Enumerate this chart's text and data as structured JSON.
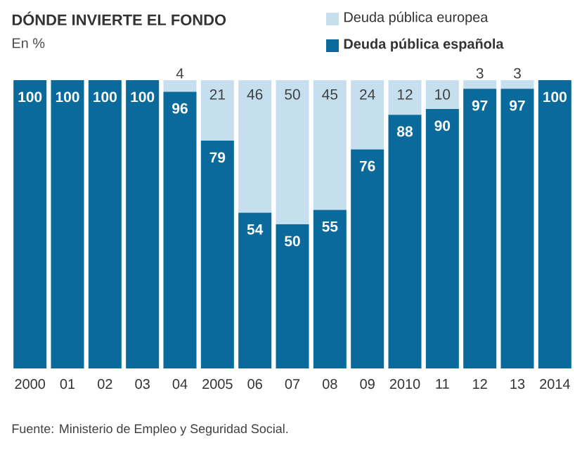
{
  "chart_data": {
    "type": "bar",
    "stacked": true,
    "title": "DÓNDE INVIERTE EL FONDO",
    "subtitle": "En %",
    "annotations": [
      "Fuente: Ministerio de Empleo y Seguridad Social."
    ],
    "categories": [
      "2000",
      "01",
      "02",
      "03",
      "04",
      "2005",
      "06",
      "07",
      "08",
      "09",
      "2010",
      "11",
      "12",
      "13",
      "2014"
    ],
    "ylim": [
      0,
      100
    ],
    "tick_labels": "x",
    "legend": "top right",
    "series": [
      {
        "name": "Deuda pública española",
        "color": "#0b6a9c",
        "values": [
          100,
          100,
          100,
          100,
          96,
          79,
          54,
          50,
          55,
          76,
          88,
          90,
          97,
          97,
          100
        ],
        "value_labels": [
          "100",
          "100",
          "100",
          "100",
          "96",
          "79",
          "54",
          "50",
          "55",
          "76",
          "88",
          "90",
          "97",
          "97",
          "100"
        ]
      },
      {
        "name": "Deuda pública europea",
        "color": "#c6dfee",
        "values": [
          0,
          0,
          0,
          0,
          4,
          21,
          46,
          50,
          45,
          24,
          12,
          10,
          3,
          3,
          0
        ],
        "value_labels": [
          null,
          null,
          null,
          null,
          "4",
          "21",
          "46",
          "50",
          "45",
          "24",
          "12",
          "10",
          "3",
          "3",
          null
        ]
      }
    ]
  }
}
